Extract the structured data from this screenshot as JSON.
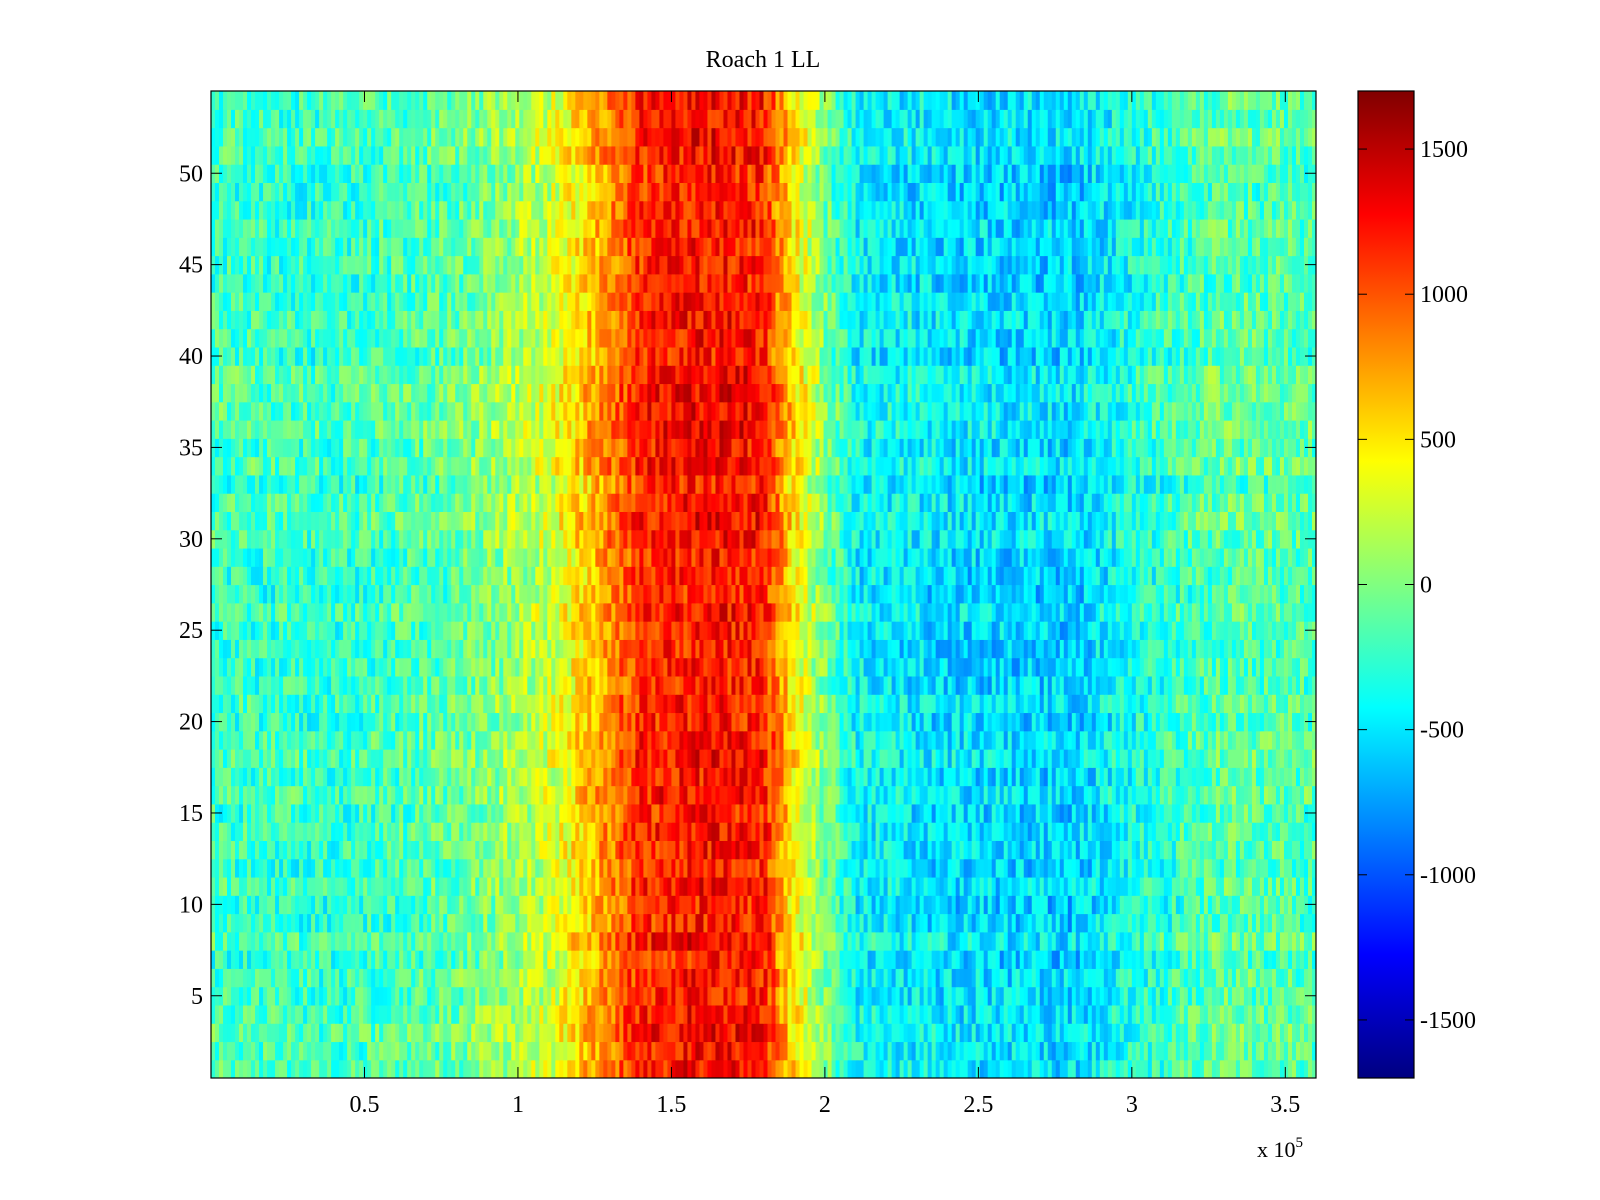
{
  "chart_data": {
    "type": "heatmap",
    "title": "Roach 1 LL",
    "xlabel": "",
    "ylabel": "",
    "x_exponent_label": {
      "base": "x 10",
      "exponent": "5"
    },
    "xlim": [
      0,
      3.6
    ],
    "ylim": [
      0.5,
      54.5
    ],
    "x_ticks": [
      0.5,
      1,
      1.5,
      2,
      2.5,
      3,
      3.5
    ],
    "x_tick_labels": [
      "0.5",
      "1",
      "1.5",
      "2",
      "2.5",
      "3",
      "3.5"
    ],
    "y_ticks": [
      5,
      10,
      15,
      20,
      25,
      30,
      35,
      40,
      45,
      50
    ],
    "y_tick_labels": [
      "5",
      "10",
      "15",
      "20",
      "25",
      "30",
      "35",
      "40",
      "45",
      "50"
    ],
    "colorbar": {
      "colormap": "jet",
      "clim": [
        -1700,
        1700
      ],
      "ticks": [
        -1500,
        -1000,
        -500,
        0,
        500,
        1000,
        1500
      ],
      "tick_labels": [
        "-1500",
        "-1000",
        "-500",
        "0",
        "500",
        "1000",
        "1500"
      ]
    },
    "rows": 54,
    "value_profile": {
      "x": [
        0,
        0.4,
        0.8,
        1.1,
        1.25,
        1.4,
        1.6,
        1.8,
        1.9,
        2.0,
        2.1,
        2.4,
        2.8,
        3.05,
        3.3,
        3.6
      ],
      "value": [
        -200,
        -250,
        -100,
        250,
        700,
        1150,
        1250,
        1200,
        500,
        0,
        -400,
        -500,
        -550,
        -300,
        -100,
        -150
      ]
    },
    "grid": false,
    "legend": "colorbar-right"
  }
}
